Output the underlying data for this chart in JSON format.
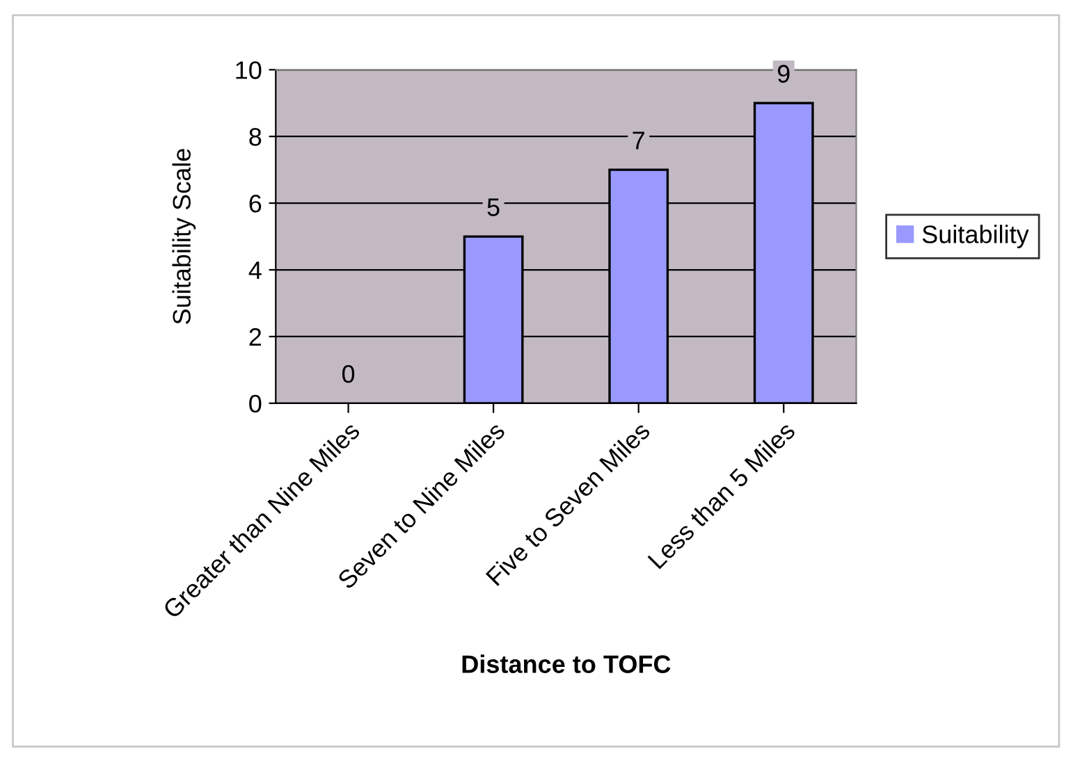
{
  "chart_data": {
    "type": "bar",
    "xlabel": "Distance to TOFC",
    "ylabel": "Suitability Scale",
    "categories": [
      "Greater than Nine Miles",
      "Seven to Nine Miles",
      "Five to Seven Miles",
      "Less than 5 Miles"
    ],
    "series": [
      {
        "name": "Suitability",
        "color": "#9999ff",
        "values": [
          0,
          5,
          7,
          9
        ]
      }
    ],
    "ylim": [
      0,
      10
    ],
    "yticks": [
      0,
      2,
      4,
      6,
      8,
      10
    ],
    "grid": "y",
    "legend": "right",
    "data_labels": true
  }
}
